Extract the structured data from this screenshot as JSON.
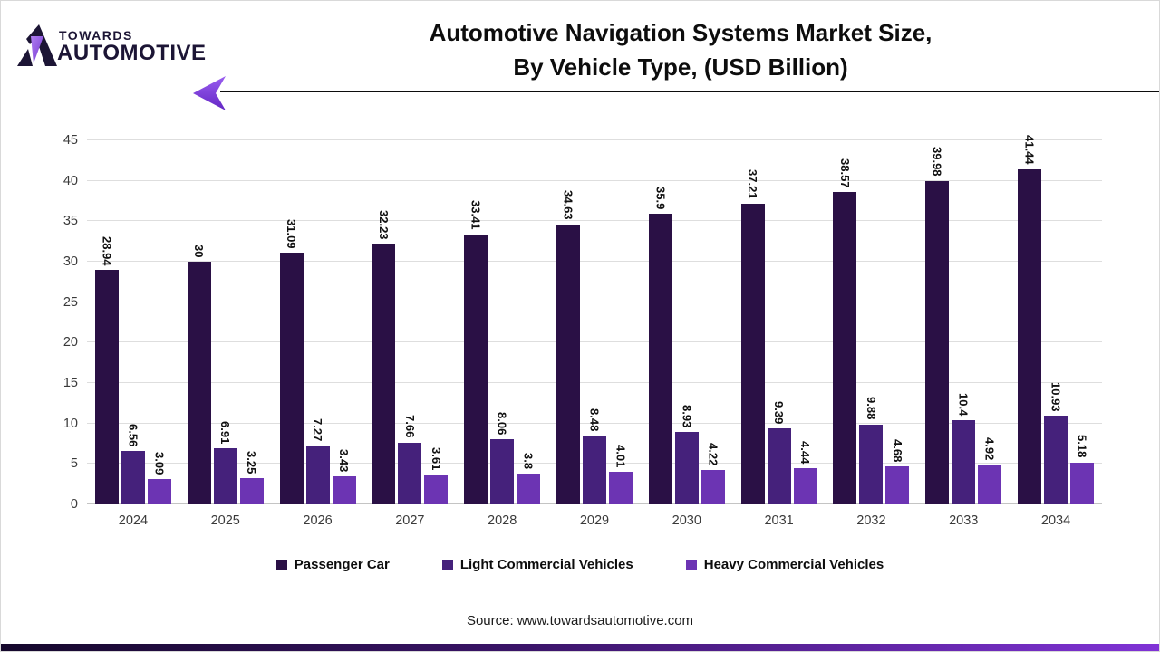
{
  "header": {
    "logo_line1": "TOWARDS",
    "logo_line2": "AUTOMOTIVE",
    "title_line1": "Automotive Navigation Systems Market Size,",
    "title_line2": "By Vehicle Type, (USD Billion)"
  },
  "chart_data": {
    "type": "bar",
    "title": "Automotive Navigation Systems Market Size, By Vehicle Type, (USD Billion)",
    "categories": [
      "2024",
      "2025",
      "2026",
      "2027",
      "2028",
      "2029",
      "2030",
      "2031",
      "2032",
      "2033",
      "2034"
    ],
    "series": [
      {
        "name": "Passenger Car",
        "color": "#2a1045",
        "values": [
          28.94,
          30,
          31.09,
          32.23,
          33.41,
          34.63,
          35.9,
          37.21,
          38.57,
          39.98,
          41.44
        ],
        "labels": [
          "28.94",
          "30",
          "31.09",
          "32.23",
          "33.41",
          "34.63",
          "35.9",
          "37.21",
          "38.57",
          "39.98",
          "41.44"
        ]
      },
      {
        "name": "Light Commercial Vehicles",
        "color": "#45217b",
        "values": [
          6.56,
          6.91,
          7.27,
          7.66,
          8.06,
          8.48,
          8.93,
          9.39,
          9.88,
          10.4,
          10.93
        ],
        "labels": [
          "6.56",
          "6.91",
          "7.27",
          "7.66",
          "8.06",
          "8.48",
          "8.93",
          "9.39",
          "9.88",
          "10.4",
          "10.93"
        ]
      },
      {
        "name": "Heavy Commercial Vehicles",
        "color": "#6c34b3",
        "values": [
          3.09,
          3.25,
          3.43,
          3.61,
          3.8,
          4.01,
          4.22,
          4.44,
          4.68,
          4.92,
          5.18
        ],
        "labels": [
          "3.09",
          "3.25",
          "3.43",
          "3.61",
          "3.8",
          "4.01",
          "4.22",
          "4.44",
          "4.68",
          "4.92",
          "5.18"
        ]
      }
    ],
    "xlabel": "",
    "ylabel": "",
    "ylim": [
      0,
      45
    ],
    "yticks": [
      0,
      5,
      10,
      15,
      20,
      25,
      30,
      35,
      40,
      45
    ],
    "grid": true,
    "legend_position": "bottom",
    "value_labels_rotated": true
  },
  "footer": {
    "source": "Source: www.towardsautomotive.com"
  },
  "colors": {
    "accent_purple": "#7a3fd9",
    "logo_dark": "#1c1535",
    "gridline": "#dedede",
    "divider": "#0c0c0c",
    "bottom_bar_left": "#15082c",
    "bottom_bar_right": "#8033d6"
  }
}
